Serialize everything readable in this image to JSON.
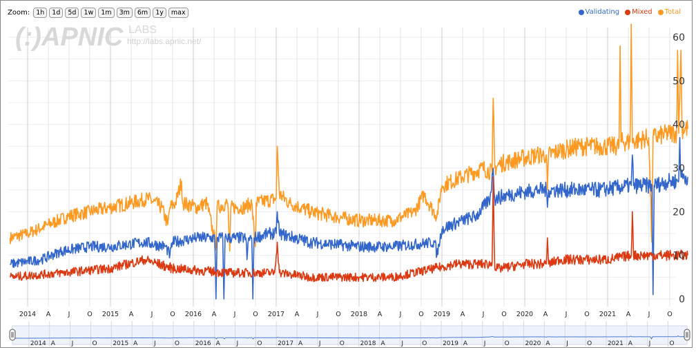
{
  "zoom": {
    "label": "Zoom:",
    "buttons": [
      "1h",
      "1d",
      "5d",
      "1w",
      "1m",
      "3m",
      "6m",
      "1y",
      "max"
    ]
  },
  "watermark": {
    "logo": "(:)APNIC",
    "labs": "LABS",
    "url": "http://labs.apnic.net/"
  },
  "legend": [
    {
      "name": "Validating",
      "color": "#3366cc"
    },
    {
      "name": "Mixed",
      "color": "#dc3912"
    },
    {
      "name": "Total",
      "color": "#ff9922"
    }
  ],
  "chart_data": {
    "type": "line",
    "title": "",
    "xlabel": "",
    "ylabel": "",
    "ylim": [
      0,
      63
    ],
    "yticks": [
      0,
      10,
      20,
      30,
      40,
      50,
      60
    ],
    "grid": true,
    "legend_placement": "top-right",
    "xticks": [
      "2014",
      "A",
      "J",
      "O",
      "2015",
      "A",
      "J",
      "O",
      "2016",
      "A",
      "J",
      "O",
      "2017",
      "A",
      "J",
      "O",
      "2018",
      "A",
      "J",
      "O",
      "2019",
      "A",
      "J",
      "O",
      "2020",
      "A",
      "J",
      "O",
      "2021",
      "A",
      "J",
      "O"
    ],
    "series": [
      {
        "name": "Total",
        "color": "#ff9922",
        "points": [
          [
            "2013-10-15",
            14
          ],
          [
            "2014-01-01",
            15
          ],
          [
            "2014-04-01",
            17
          ],
          [
            "2014-07-01",
            19
          ],
          [
            "2014-10-01",
            20
          ],
          [
            "2015-01-01",
            21
          ],
          [
            "2015-04-01",
            22
          ],
          [
            "2015-06-15",
            23
          ],
          [
            "2015-08-15",
            21
          ],
          [
            "2015-09-10",
            17
          ],
          [
            "2015-09-20",
            21
          ],
          [
            "2015-10-15",
            22
          ],
          [
            "2015-11-10",
            27
          ],
          [
            "2015-11-15",
            22
          ],
          [
            "2016-01-15",
            21
          ],
          [
            "2016-03-01",
            22
          ],
          [
            "2016-04-10",
            12
          ],
          [
            "2016-04-15",
            21
          ],
          [
            "2016-06-01",
            22
          ],
          [
            "2016-06-10",
            11
          ],
          [
            "2016-06-15",
            21
          ],
          [
            "2016-08-15",
            21
          ],
          [
            "2016-09-15",
            22
          ],
          [
            "2016-10-01",
            12
          ],
          [
            "2016-10-05",
            22
          ],
          [
            "2017-01-01",
            23
          ],
          [
            "2017-01-06",
            35
          ],
          [
            "2017-01-15",
            24
          ],
          [
            "2017-03-01",
            22
          ],
          [
            "2017-06-01",
            20
          ],
          [
            "2017-09-01",
            19
          ],
          [
            "2018-01-01",
            18
          ],
          [
            "2018-06-01",
            18
          ],
          [
            "2018-09-01",
            20
          ],
          [
            "2018-10-15",
            24
          ],
          [
            "2018-11-15",
            21
          ],
          [
            "2018-12-10",
            19
          ],
          [
            "2019-01-01",
            26
          ],
          [
            "2019-04-01",
            28
          ],
          [
            "2019-07-01",
            30
          ],
          [
            "2019-08-10",
            29
          ],
          [
            "2019-08-15",
            46
          ],
          [
            "2019-08-22",
            30
          ],
          [
            "2019-09-15",
            31
          ],
          [
            "2019-12-01",
            32
          ],
          [
            "2020-03-01",
            33
          ],
          [
            "2020-04-05",
            33
          ],
          [
            "2020-04-10",
            25
          ],
          [
            "2020-04-15",
            33
          ],
          [
            "2020-06-01",
            34
          ],
          [
            "2020-09-01",
            35
          ],
          [
            "2020-12-01",
            35
          ],
          [
            "2021-02-20",
            35
          ],
          [
            "2021-02-25",
            58
          ],
          [
            "2021-03-01",
            36
          ],
          [
            "2021-04-10",
            36
          ],
          [
            "2021-04-15",
            63
          ],
          [
            "2021-04-20",
            36
          ],
          [
            "2021-07-01",
            37
          ],
          [
            "2021-07-15",
            13
          ],
          [
            "2021-07-20",
            37
          ],
          [
            "2021-10-01",
            38
          ],
          [
            "2021-11-01",
            38
          ],
          [
            "2021-11-05",
            57
          ],
          [
            "2021-11-10",
            38
          ],
          [
            "2021-11-20",
            57
          ],
          [
            "2021-11-25",
            39
          ],
          [
            "2021-12-20",
            39
          ]
        ]
      },
      {
        "name": "Validating",
        "color": "#3366cc",
        "points": [
          [
            "2013-10-15",
            8
          ],
          [
            "2014-03-01",
            9
          ],
          [
            "2014-06-01",
            11
          ],
          [
            "2014-10-01",
            12
          ],
          [
            "2015-01-01",
            12
          ],
          [
            "2015-06-01",
            13
          ],
          [
            "2015-09-01",
            12
          ],
          [
            "2015-09-20",
            10
          ],
          [
            "2015-10-01",
            13
          ],
          [
            "2016-01-15",
            14
          ],
          [
            "2016-04-05",
            14
          ],
          [
            "2016-04-10",
            0
          ],
          [
            "2016-04-15",
            14
          ],
          [
            "2016-05-10",
            14
          ],
          [
            "2016-05-15",
            0
          ],
          [
            "2016-05-20",
            14
          ],
          [
            "2016-07-01",
            14
          ],
          [
            "2016-08-20",
            14
          ],
          [
            "2016-08-25",
            9
          ],
          [
            "2016-09-01",
            14
          ],
          [
            "2016-09-15",
            14
          ],
          [
            "2016-09-20",
            0
          ],
          [
            "2016-09-25",
            14
          ],
          [
            "2016-12-01",
            15
          ],
          [
            "2017-01-01",
            15
          ],
          [
            "2017-01-06",
            20
          ],
          [
            "2017-01-15",
            15
          ],
          [
            "2017-06-01",
            13
          ],
          [
            "2018-01-01",
            12
          ],
          [
            "2018-06-01",
            12
          ],
          [
            "2018-12-01",
            13
          ],
          [
            "2018-12-10",
            10
          ],
          [
            "2019-01-01",
            16
          ],
          [
            "2019-04-01",
            18
          ],
          [
            "2019-06-01",
            19
          ],
          [
            "2019-08-01",
            23
          ],
          [
            "2019-08-15",
            30
          ],
          [
            "2019-08-22",
            23
          ],
          [
            "2019-11-01",
            24
          ],
          [
            "2020-03-01",
            25
          ],
          [
            "2020-04-05",
            25
          ],
          [
            "2020-04-10",
            21
          ],
          [
            "2020-04-15",
            25
          ],
          [
            "2020-06-01",
            25
          ],
          [
            "2020-12-01",
            25
          ],
          [
            "2021-04-15",
            26
          ],
          [
            "2021-04-20",
            33
          ],
          [
            "2021-04-25",
            26
          ],
          [
            "2021-07-15",
            26
          ],
          [
            "2021-07-20",
            1
          ],
          [
            "2021-07-25",
            26
          ],
          [
            "2021-10-01",
            27
          ],
          [
            "2021-11-10",
            27
          ],
          [
            "2021-11-15",
            37
          ],
          [
            "2021-11-20",
            28
          ],
          [
            "2021-12-20",
            28
          ]
        ]
      },
      {
        "name": "Mixed",
        "color": "#dc3912",
        "points": [
          [
            "2013-10-15",
            5
          ],
          [
            "2014-06-01",
            6
          ],
          [
            "2015-01-01",
            7
          ],
          [
            "2015-06-01",
            9
          ],
          [
            "2015-10-01",
            7
          ],
          [
            "2016-06-01",
            6
          ],
          [
            "2016-12-25",
            6
          ],
          [
            "2017-01-06",
            13
          ],
          [
            "2017-01-15",
            6
          ],
          [
            "2017-06-01",
            5
          ],
          [
            "2018-01-01",
            5
          ],
          [
            "2018-06-01",
            5
          ],
          [
            "2018-12-01",
            7
          ],
          [
            "2019-03-01",
            8
          ],
          [
            "2019-06-01",
            8
          ],
          [
            "2019-08-10",
            8
          ],
          [
            "2019-08-15",
            28
          ],
          [
            "2019-08-22",
            7
          ],
          [
            "2019-09-15",
            7
          ],
          [
            "2020-01-01",
            8
          ],
          [
            "2020-04-05",
            8
          ],
          [
            "2020-04-10",
            14
          ],
          [
            "2020-04-15",
            8
          ],
          [
            "2020-06-01",
            9
          ],
          [
            "2021-01-01",
            9
          ],
          [
            "2021-04-15",
            10
          ],
          [
            "2021-04-20",
            20
          ],
          [
            "2021-04-25",
            10
          ],
          [
            "2021-06-01",
            10
          ],
          [
            "2021-12-20",
            10
          ]
        ]
      }
    ]
  },
  "navigator": {
    "labels": [
      "2014",
      "A",
      "J",
      "O",
      "2015",
      "A",
      "J",
      "O",
      "2016",
      "A",
      "J",
      "O",
      "2017",
      "A",
      "J",
      "O",
      "2018",
      "A",
      "J",
      "O",
      "2019",
      "A",
      "J",
      "O",
      "2020",
      "A",
      "J",
      "O",
      "2021",
      "A",
      "J",
      "O"
    ]
  }
}
